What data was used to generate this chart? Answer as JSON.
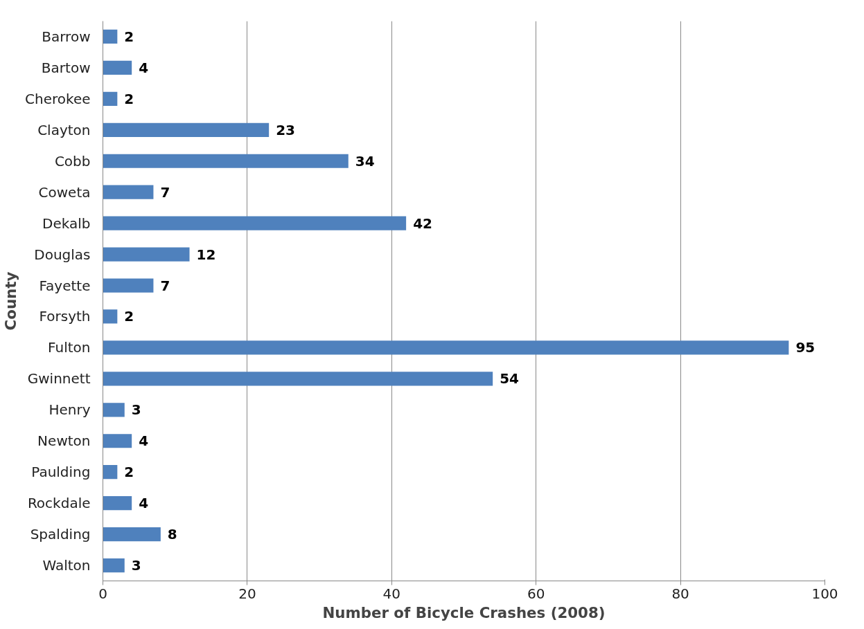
{
  "chart_data": {
    "type": "bar",
    "orientation": "horizontal",
    "xlabel": "Number of Bicycle Crashes (2008)",
    "ylabel": "County",
    "categories": [
      "Barrow",
      "Bartow",
      "Cherokee",
      "Clayton",
      "Cobb",
      "Coweta",
      "Dekalb",
      "Douglas",
      "Fayette",
      "Forsyth",
      "Fulton",
      "Gwinnett",
      "Henry",
      "Newton",
      "Paulding",
      "Rockdale",
      "Spalding",
      "Walton"
    ],
    "values": [
      2,
      4,
      2,
      23,
      34,
      7,
      42,
      12,
      7,
      2,
      95,
      54,
      3,
      4,
      2,
      4,
      8,
      3
    ],
    "color": "#4f81bd",
    "xlim": [
      0,
      100
    ],
    "xticks": [
      0,
      20,
      40,
      60,
      80,
      100
    ],
    "grid": "x",
    "data_labels": true
  }
}
